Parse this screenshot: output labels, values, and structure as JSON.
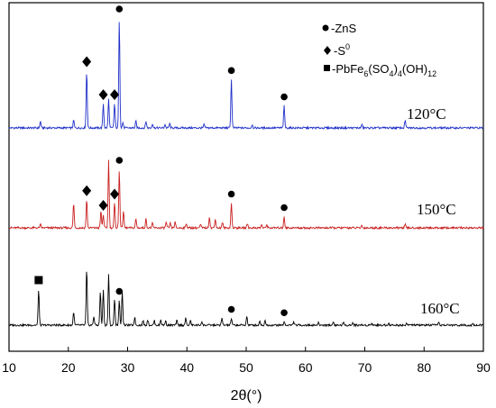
{
  "chart_data": {
    "type": "line",
    "xlabel": "2θ(°)",
    "xlim": [
      10,
      90
    ],
    "x_ticks": [
      "10",
      "20",
      "30",
      "40",
      "50",
      "60",
      "70",
      "80",
      "90"
    ],
    "ylabel": "",
    "grid": false,
    "legend": {
      "placement": "top-right",
      "entries": [
        {
          "marker": "circle",
          "text": "-ZnS"
        },
        {
          "marker": "diamond",
          "text": "-S",
          "sup": "0"
        },
        {
          "marker": "square",
          "text": "-PbFe",
          "sub1": "6",
          "mid": "(SO",
          "sub2": "4",
          "mid2": ")",
          "sub3": "4",
          "tail": "(OH)",
          "sub4": "12"
        }
      ]
    },
    "series": [
      {
        "name": "120°C",
        "color": "#1f2fc8",
        "peaks": [
          {
            "x": 15.3,
            "h": 0.06
          },
          {
            "x": 20.9,
            "h": 0.07
          },
          {
            "x": 23.1,
            "h": 0.52,
            "marker": "diamond"
          },
          {
            "x": 25.9,
            "h": 0.22,
            "marker": "diamond"
          },
          {
            "x": 26.8,
            "h": 0.26
          },
          {
            "x": 27.8,
            "h": 0.22,
            "marker": "diamond"
          },
          {
            "x": 28.6,
            "h": 1.0,
            "marker": "circle"
          },
          {
            "x": 29.2,
            "h": 0.05
          },
          {
            "x": 31.4,
            "h": 0.06
          },
          {
            "x": 33.1,
            "h": 0.06
          },
          {
            "x": 34.2,
            "h": 0.04
          },
          {
            "x": 36.3,
            "h": 0.03
          },
          {
            "x": 37.1,
            "h": 0.04
          },
          {
            "x": 42.9,
            "h": 0.03
          },
          {
            "x": 47.5,
            "h": 0.44,
            "marker": "circle"
          },
          {
            "x": 51.0,
            "h": 0.03
          },
          {
            "x": 56.4,
            "h": 0.2,
            "marker": "circle"
          },
          {
            "x": 69.5,
            "h": 0.03
          },
          {
            "x": 76.8,
            "h": 0.07
          }
        ]
      },
      {
        "name": "150°C",
        "color": "#c81e1e",
        "peaks": [
          {
            "x": 15.3,
            "h": 0.03
          },
          {
            "x": 20.9,
            "h": 0.22
          },
          {
            "x": 23.1,
            "h": 0.25,
            "marker": "diamond"
          },
          {
            "x": 25.5,
            "h": 0.15
          },
          {
            "x": 25.9,
            "h": 0.12,
            "marker": "diamond"
          },
          {
            "x": 26.8,
            "h": 0.6
          },
          {
            "x": 27.8,
            "h": 0.22,
            "marker": "diamond"
          },
          {
            "x": 28.6,
            "h": 0.52,
            "marker": "circle"
          },
          {
            "x": 29.3,
            "h": 0.15
          },
          {
            "x": 31.4,
            "h": 0.08
          },
          {
            "x": 33.1,
            "h": 0.08
          },
          {
            "x": 34.2,
            "h": 0.04
          },
          {
            "x": 36.5,
            "h": 0.05
          },
          {
            "x": 37.2,
            "h": 0.04
          },
          {
            "x": 38.0,
            "h": 0.05
          },
          {
            "x": 39.9,
            "h": 0.04
          },
          {
            "x": 42.3,
            "h": 0.03
          },
          {
            "x": 43.8,
            "h": 0.1
          },
          {
            "x": 44.8,
            "h": 0.08
          },
          {
            "x": 46.0,
            "h": 0.05
          },
          {
            "x": 47.5,
            "h": 0.22,
            "marker": "circle"
          },
          {
            "x": 50.2,
            "h": 0.04
          },
          {
            "x": 52.6,
            "h": 0.03
          },
          {
            "x": 53.5,
            "h": 0.03
          },
          {
            "x": 56.4,
            "h": 0.1,
            "marker": "circle"
          },
          {
            "x": 69.5,
            "h": 0.02
          },
          {
            "x": 76.8,
            "h": 0.03
          }
        ]
      },
      {
        "name": "160°C",
        "color": "#000000",
        "peaks": [
          {
            "x": 15.0,
            "h": 0.32,
            "marker": "square"
          },
          {
            "x": 20.9,
            "h": 0.12
          },
          {
            "x": 23.1,
            "h": 0.5
          },
          {
            "x": 24.3,
            "h": 0.08
          },
          {
            "x": 25.4,
            "h": 0.3
          },
          {
            "x": 25.9,
            "h": 0.32
          },
          {
            "x": 26.8,
            "h": 0.45
          },
          {
            "x": 27.8,
            "h": 0.24
          },
          {
            "x": 28.6,
            "h": 0.22,
            "marker": "circle"
          },
          {
            "x": 29.1,
            "h": 0.3
          },
          {
            "x": 31.2,
            "h": 0.07
          },
          {
            "x": 32.6,
            "h": 0.04
          },
          {
            "x": 33.4,
            "h": 0.05
          },
          {
            "x": 34.5,
            "h": 0.04
          },
          {
            "x": 35.6,
            "h": 0.05
          },
          {
            "x": 36.4,
            "h": 0.04
          },
          {
            "x": 38.3,
            "h": 0.04
          },
          {
            "x": 39.8,
            "h": 0.06
          },
          {
            "x": 40.6,
            "h": 0.04
          },
          {
            "x": 42.5,
            "h": 0.03
          },
          {
            "x": 45.9,
            "h": 0.06
          },
          {
            "x": 47.5,
            "h": 0.06,
            "marker": "circle"
          },
          {
            "x": 50.1,
            "h": 0.08
          },
          {
            "x": 52.3,
            "h": 0.04
          },
          {
            "x": 53.2,
            "h": 0.04
          },
          {
            "x": 56.4,
            "h": 0.03,
            "marker": "circle"
          },
          {
            "x": 58.0,
            "h": 0.03
          },
          {
            "x": 62.2,
            "h": 0.02
          },
          {
            "x": 64.7,
            "h": 0.03
          },
          {
            "x": 66.4,
            "h": 0.02
          },
          {
            "x": 68.0,
            "h": 0.02
          },
          {
            "x": 71.2,
            "h": 0.02
          },
          {
            "x": 74.0,
            "h": 0.02
          },
          {
            "x": 77.1,
            "h": 0.02
          },
          {
            "x": 82.5,
            "h": 0.02
          },
          {
            "x": 88.2,
            "h": 0.02
          }
        ]
      }
    ]
  }
}
